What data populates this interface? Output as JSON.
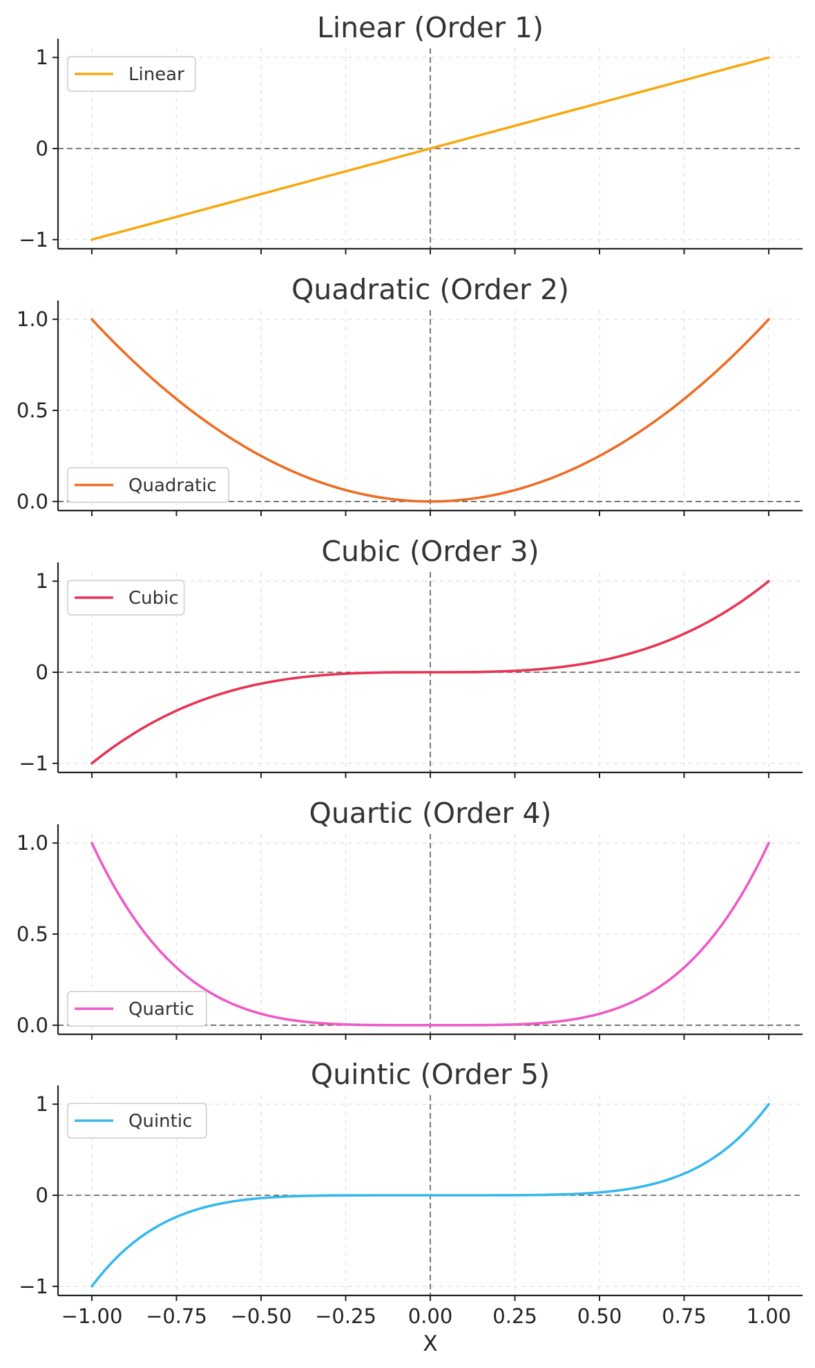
{
  "chart_data": [
    {
      "type": "line",
      "title": "Linear (Order 1)",
      "color": "#F5A911",
      "legend_position": "upper left",
      "x": [
        -1.0,
        -0.75,
        -0.5,
        -0.25,
        0.0,
        0.25,
        0.5,
        0.75,
        1.0
      ],
      "series": [
        {
          "name": "Linear",
          "values": [
            -1.0,
            -0.75,
            -0.5,
            -0.25,
            0.0,
            0.25,
            0.5,
            0.75,
            1.0
          ]
        }
      ],
      "xlim": [
        -1.1,
        1.1
      ],
      "ylim": [
        -1.1,
        1.1
      ],
      "yticks": [
        -1,
        0,
        1
      ],
      "ytick_labels": [
        "−1",
        "0",
        "1"
      ],
      "grid": true
    },
    {
      "type": "line",
      "title": "Quadratic (Order 2)",
      "color": "#EE6B23",
      "legend_position": "lower left",
      "x": [
        -1.0,
        -0.75,
        -0.5,
        -0.25,
        0.0,
        0.25,
        0.5,
        0.75,
        1.0
      ],
      "series": [
        {
          "name": "Quadratic",
          "values": [
            1.0,
            0.5625,
            0.25,
            0.0625,
            0.0,
            0.0625,
            0.25,
            0.5625,
            1.0
          ]
        }
      ],
      "xlim": [
        -1.1,
        1.1
      ],
      "ylim": [
        -0.05,
        1.05
      ],
      "yticks": [
        0.0,
        0.5,
        1.0
      ],
      "ytick_labels": [
        "0.0",
        "0.5",
        "1.0"
      ],
      "grid": true
    },
    {
      "type": "line",
      "title": "Cubic (Order 3)",
      "color": "#E83351",
      "legend_position": "upper left",
      "x": [
        -1.0,
        -0.75,
        -0.5,
        -0.25,
        0.0,
        0.25,
        0.5,
        0.75,
        1.0
      ],
      "series": [
        {
          "name": "Cubic",
          "values": [
            -1.0,
            -0.4219,
            -0.125,
            -0.0156,
            0.0,
            0.0156,
            0.125,
            0.4219,
            1.0
          ]
        }
      ],
      "xlim": [
        -1.1,
        1.1
      ],
      "ylim": [
        -1.1,
        1.1
      ],
      "yticks": [
        -1,
        0,
        1
      ],
      "ytick_labels": [
        "−1",
        "0",
        "1"
      ],
      "grid": true
    },
    {
      "type": "line",
      "title": "Quartic (Order 4)",
      "color": "#EE59C6",
      "legend_position": "lower left",
      "x": [
        -1.0,
        -0.75,
        -0.5,
        -0.25,
        0.0,
        0.25,
        0.5,
        0.75,
        1.0
      ],
      "series": [
        {
          "name": "Quartic",
          "values": [
            1.0,
            0.3164,
            0.0625,
            0.0039,
            0.0,
            0.0039,
            0.0625,
            0.3164,
            1.0
          ]
        }
      ],
      "xlim": [
        -1.1,
        1.1
      ],
      "ylim": [
        -0.05,
        1.05
      ],
      "yticks": [
        0.0,
        0.5,
        1.0
      ],
      "ytick_labels": [
        "0.0",
        "0.5",
        "1.0"
      ],
      "grid": true
    },
    {
      "type": "line",
      "title": "Quintic (Order 5)",
      "color": "#35B8EE",
      "legend_position": "upper left",
      "x": [
        -1.0,
        -0.75,
        -0.5,
        -0.25,
        0.0,
        0.25,
        0.5,
        0.75,
        1.0
      ],
      "series": [
        {
          "name": "Quintic",
          "values": [
            -1.0,
            -0.2373,
            -0.0313,
            -0.001,
            0.0,
            0.001,
            0.0313,
            0.2373,
            1.0
          ]
        }
      ],
      "xlim": [
        -1.1,
        1.1
      ],
      "ylim": [
        -1.1,
        1.1
      ],
      "yticks": [
        -1,
        0,
        1
      ],
      "ytick_labels": [
        "−1",
        "0",
        "1"
      ],
      "xticks": [
        -1.0,
        -0.75,
        -0.5,
        -0.25,
        0.0,
        0.25,
        0.5,
        0.75,
        1.0
      ],
      "xtick_labels": [
        "−1.00",
        "−0.75",
        "−0.50",
        "−0.25",
        "0.00",
        "0.25",
        "0.50",
        "0.75",
        "1.00"
      ],
      "xlabel": "X",
      "grid": true
    }
  ]
}
